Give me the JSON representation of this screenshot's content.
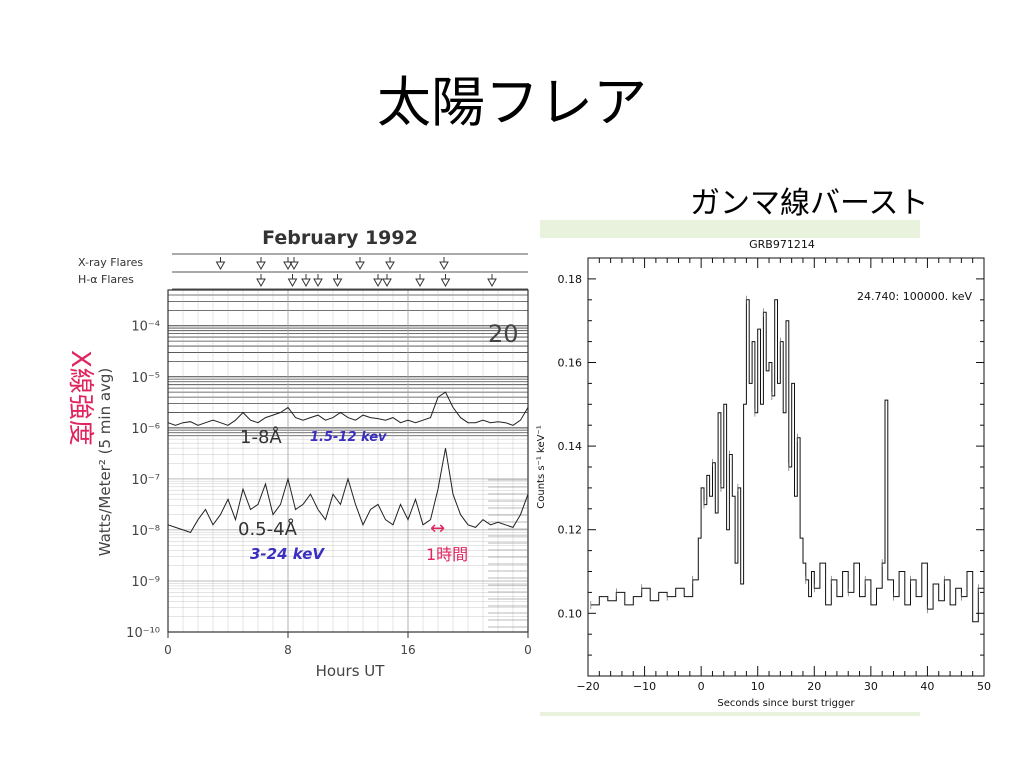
{
  "slide": {
    "title": "太陽フレア",
    "subtitle": "ガンマ線バースト"
  },
  "colors": {
    "background": "#ffffff",
    "panel": "#e8f2dc",
    "annotation_red": "#e0245e",
    "annotation_blue": "#3a2fc0",
    "ink": "#222222"
  },
  "chart_data": [
    {
      "type": "line",
      "title": "February 1992",
      "xlabel": "Hours UT",
      "ylabel": "Watts/Meter² (5 min avg)",
      "row_labels": [
        "X-ray Flares",
        "H-α Flares"
      ],
      "x_ticks": [
        "0",
        "8",
        "16",
        "0"
      ],
      "y_ticks": [
        "10⁻⁴",
        "10⁻⁵",
        "10⁻⁶",
        "10⁻⁷",
        "10⁻⁸",
        "10⁻⁹",
        "10⁻¹⁰"
      ],
      "date_label": "20",
      "log_scale": true,
      "xlim": [
        0,
        24
      ],
      "ylim": [
        -10,
        -3.3
      ],
      "xray_flare_hours": [
        3.5,
        6.2,
        8.0,
        8.4,
        12.8,
        14.8,
        18.4
      ],
      "halpha_flare_hours": [
        6.2,
        8.3,
        9.2,
        10.0,
        11.3,
        14.0,
        14.6,
        16.8,
        18.5,
        21.6
      ],
      "series": [
        {
          "name": "1-8Å",
          "x": [
            0,
            0.5,
            1,
            1.5,
            2,
            2.5,
            3,
            3.5,
            4,
            4.5,
            5,
            5.5,
            6,
            6.5,
            7,
            7.5,
            8,
            8.5,
            9,
            9.5,
            10,
            10.5,
            11,
            11.5,
            12,
            12.5,
            13,
            13.5,
            14,
            14.5,
            15,
            15.5,
            16,
            16.5,
            17,
            17.5,
            18,
            18.5,
            19,
            19.5,
            20,
            20.5,
            21,
            21.5,
            22,
            22.5,
            23,
            23.5,
            24
          ],
          "y": [
            -5.9,
            -5.95,
            -5.9,
            -5.88,
            -5.95,
            -5.9,
            -5.85,
            -5.9,
            -5.95,
            -5.85,
            -5.7,
            -5.85,
            -5.9,
            -5.8,
            -5.75,
            -5.7,
            -5.6,
            -5.8,
            -5.85,
            -5.8,
            -5.75,
            -5.85,
            -5.8,
            -5.7,
            -5.8,
            -5.85,
            -5.75,
            -5.8,
            -5.82,
            -5.85,
            -5.8,
            -5.9,
            -5.85,
            -5.9,
            -5.85,
            -5.8,
            -5.4,
            -5.3,
            -5.6,
            -5.8,
            -5.9,
            -5.9,
            -5.85,
            -5.9,
            -5.88,
            -5.9,
            -5.95,
            -5.85,
            -5.6
          ]
        },
        {
          "name": "0.5-4Å",
          "x": [
            0,
            0.5,
            1,
            1.5,
            2,
            2.5,
            3,
            3.5,
            4,
            4.5,
            5,
            5.5,
            6,
            6.5,
            7,
            7.5,
            8,
            8.5,
            9,
            9.5,
            10,
            10.5,
            11,
            11.5,
            12,
            12.5,
            13,
            13.5,
            14,
            14.5,
            15,
            15.5,
            16,
            16.5,
            17,
            17.5,
            18,
            18.5,
            19,
            19.5,
            20,
            20.5,
            21,
            21.5,
            22,
            22.5,
            23,
            23.5,
            24
          ],
          "y": [
            -7.9,
            -7.95,
            -8.0,
            -8.05,
            -7.8,
            -7.6,
            -7.9,
            -7.7,
            -7.4,
            -7.8,
            -7.2,
            -7.6,
            -7.5,
            -7.1,
            -7.7,
            -7.5,
            -7.0,
            -7.6,
            -7.5,
            -7.3,
            -7.6,
            -7.8,
            -7.3,
            -7.5,
            -7.0,
            -7.5,
            -7.9,
            -7.6,
            -7.5,
            -7.8,
            -7.9,
            -7.5,
            -7.8,
            -7.4,
            -7.9,
            -7.8,
            -7.2,
            -6.4,
            -7.3,
            -7.7,
            -7.9,
            -7.95,
            -7.8,
            -7.9,
            -7.85,
            -7.9,
            -7.95,
            -7.7,
            -7.3
          ]
        }
      ],
      "annotations": {
        "axis_note_red": "X線強度",
        "band1_label": "1-8Å",
        "band1_energy": "1.5-12 kev",
        "band2_label": "0.5-4Å",
        "band2_energy": "3-24 keV",
        "time_arrow": "↔",
        "time_note": "1時間"
      }
    },
    {
      "type": "line",
      "title": "GRB971214",
      "xlabel": "Seconds since burst trigger",
      "ylabel": "Counts s⁻¹ keV⁻¹",
      "energy_range": "24.740: 100000. keV",
      "xlim": [
        -20,
        50
      ],
      "ylim": [
        0.085,
        0.185
      ],
      "x_ticks": [
        "−20",
        "−10",
        "0",
        "10",
        "20",
        "30",
        "40",
        "50"
      ],
      "y_ticks": [
        "0.10",
        "0.12",
        "0.14",
        "0.16",
        "0.18"
      ],
      "x": [
        -19.5,
        -18,
        -16.5,
        -15,
        -13.5,
        -12,
        -10.5,
        -9,
        -7.5,
        -6,
        -4.5,
        -3,
        -1.5,
        -0.5,
        0,
        0.5,
        1,
        1.5,
        2,
        2.5,
        3,
        3.5,
        4,
        4.5,
        5,
        5.5,
        6,
        6.5,
        7,
        7.5,
        8,
        8.5,
        9,
        9.5,
        10,
        10.5,
        11,
        11.5,
        12,
        12.5,
        13,
        13.5,
        14,
        14.5,
        15,
        15.5,
        16,
        16.5,
        17,
        17.5,
        18,
        18.5,
        19,
        19.5,
        20,
        21,
        22,
        23,
        24,
        25,
        26,
        27,
        28,
        29,
        30,
        31,
        32,
        32.5,
        33,
        34,
        35,
        36,
        37,
        38,
        39,
        40,
        41,
        42,
        43,
        44,
        45,
        46,
        47,
        48,
        49,
        50
      ],
      "y": [
        0.102,
        0.104,
        0.103,
        0.105,
        0.102,
        0.104,
        0.106,
        0.103,
        0.105,
        0.104,
        0.106,
        0.104,
        0.108,
        0.118,
        0.13,
        0.126,
        0.133,
        0.128,
        0.136,
        0.124,
        0.148,
        0.13,
        0.15,
        0.12,
        0.138,
        0.128,
        0.112,
        0.13,
        0.107,
        0.15,
        0.175,
        0.155,
        0.165,
        0.148,
        0.168,
        0.15,
        0.172,
        0.158,
        0.16,
        0.152,
        0.175,
        0.155,
        0.165,
        0.148,
        0.17,
        0.135,
        0.155,
        0.128,
        0.142,
        0.118,
        0.112,
        0.108,
        0.104,
        0.11,
        0.106,
        0.112,
        0.102,
        0.108,
        0.104,
        0.11,
        0.105,
        0.112,
        0.104,
        0.108,
        0.102,
        0.106,
        0.112,
        0.151,
        0.108,
        0.104,
        0.11,
        0.102,
        0.108,
        0.104,
        0.112,
        0.101,
        0.107,
        0.103,
        0.108,
        0.102,
        0.106,
        0.104,
        0.11,
        0.098,
        0.106,
        0.104
      ]
    }
  ]
}
